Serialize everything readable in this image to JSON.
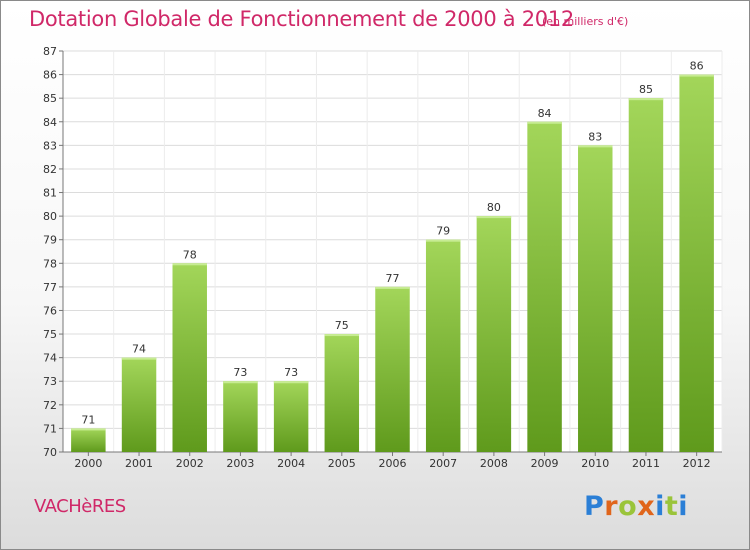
{
  "header": {
    "title": "Dotation Globale de Fonctionnement de 2000 à 2012",
    "subtitle": "(en milliers d'€)"
  },
  "footer": {
    "commune": "VACHèRES",
    "logo_text": "Proxiti"
  },
  "colors": {
    "accent": "#d02868",
    "bar_light": "#a3d65a",
    "bar_dark": "#5f9a1c",
    "logo_letters": [
      "#2b7fd6",
      "#e0651b",
      "#9ac43a",
      "#e0651b",
      "#2b7fd6",
      "#9ac43a",
      "#2b7fd6"
    ]
  },
  "chart_data": {
    "type": "bar",
    "categories": [
      "2000",
      "2001",
      "2002",
      "2003",
      "2004",
      "2005",
      "2006",
      "2007",
      "2008",
      "2009",
      "2010",
      "2011",
      "2012"
    ],
    "values": [
      71,
      74,
      78,
      73,
      73,
      75,
      77,
      79,
      80,
      84,
      83,
      85,
      86
    ],
    "ylim": [
      70,
      87
    ],
    "yticks": [
      70,
      71,
      72,
      73,
      74,
      75,
      76,
      77,
      78,
      79,
      80,
      81,
      82,
      83,
      84,
      85,
      86,
      87
    ],
    "grid": true,
    "data_labels": true
  }
}
